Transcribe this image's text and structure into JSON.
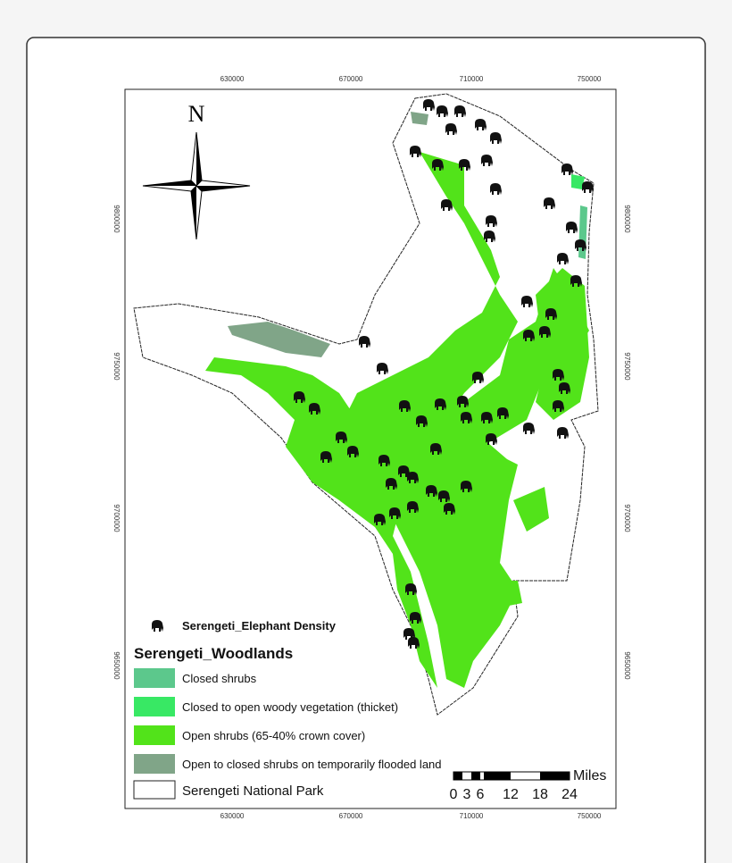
{
  "compass": "N",
  "x_ticks": [
    "630000",
    "670000",
    "710000",
    "750000"
  ],
  "y_ticks": [
    "9800000",
    "9750000",
    "9700000",
    "9650000"
  ],
  "legend": {
    "point_layer": "Serengeti_Elephant Density",
    "title": "Serengeti_Woodlands",
    "items": [
      {
        "label": "Closed shrubs",
        "color": "#5cc88c"
      },
      {
        "label": "Closed to open woody vegetation (thicket)",
        "color": "#38e864"
      },
      {
        "label": "Open shrubs (65-40% crown cover)",
        "color": "#52e31a"
      },
      {
        "label": "Open to closed shrubs on temporarily flooded land",
        "color": "#80a588"
      }
    ],
    "boundary": "Serengeti National Park"
  },
  "scale_bar": {
    "unit": "Miles",
    "labels": [
      "0",
      "3",
      "6",
      "12",
      "18",
      "24"
    ]
  }
}
